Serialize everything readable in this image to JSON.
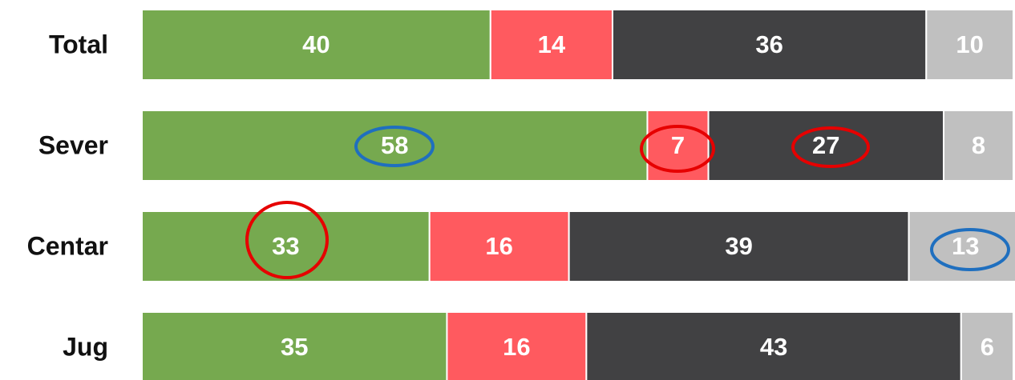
{
  "chart_data": {
    "type": "stacked-bar-horizontal",
    "categories": [
      "Total",
      "Sever",
      "Centar",
      "Jug"
    ],
    "series": [
      {
        "color": "#76a94f",
        "values": [
          40,
          58,
          33,
          35
        ]
      },
      {
        "color": "#ff5a5f",
        "values": [
          14,
          7,
          16,
          16
        ]
      },
      {
        "color": "#414143",
        "values": [
          36,
          27,
          39,
          43
        ]
      },
      {
        "color": "#c0c0c0",
        "values": [
          10,
          8,
          13,
          6
        ]
      }
    ],
    "xlim": [
      0,
      100
    ]
  }
}
